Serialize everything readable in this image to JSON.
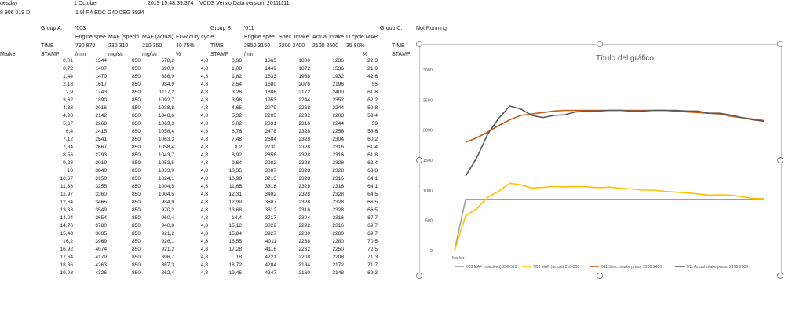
{
  "header": {
    "day_partial": "uesday",
    "date_part1": "1 October",
    "date_part2": "2019 15:48:39:374",
    "vcds": "VCDS Versio Data version: 20111111",
    "part_number": "8 906 019 D",
    "engine": "1.9l R4 EDC G40 0SG 3934"
  },
  "groups": {
    "a_label": "Group A:",
    "a_value": "'003",
    "b_label": "Group B:",
    "b_value": "'011",
    "c_label": "Group C:",
    "c_value": "Not Running"
  },
  "columns": {
    "marker": "Marker",
    "time1": "TIME",
    "stamp1": "STAMP",
    "engine_speed": "Engine spee",
    "engine_speed_range": "790 870",
    "engine_speed_unit": "/min",
    "maf_spec": "MAF (specifi",
    "maf_spec_range": "230 310",
    "maf_spec_unit": "mg/str",
    "maf_actual": "MAF (actual)",
    "maf_actual_range": "210 350",
    "maf_actual_unit": "mg/str",
    "egr": "EGR duty cycle",
    "egr_range": "40 75%",
    "egr_unit": "%",
    "time2": "TIME",
    "stamp2": "STAMP",
    "engine_speed2": "Engine spee",
    "engine_speed2_range": "2850 3150",
    "engine_speed2_unit": "/min",
    "spec_intake": "Spec. intake",
    "spec_intake_range": "2200 2400",
    "actual_intake": "Actual intake",
    "actual_intake_range": "2100 2600",
    "dcycle": "D.cycle MAP",
    "dcycle_range": "35 80%",
    "dcycle_unit": "%",
    "time3": "TIME",
    "stamp3": "STAMP"
  },
  "rows": [
    [
      "0,01",
      "1344",
      "850",
      "578,2",
      "4,8",
      "0,36",
      "1365",
      "1800",
      "1236",
      "22,3"
    ],
    [
      "0,72",
      "1407",
      "850",
      "690,9",
      "4,8",
      "1,08",
      "1449",
      "1872",
      "1536",
      "21,9"
    ],
    [
      "1,44",
      "1470",
      "850",
      "886,9",
      "4,8",
      "1,82",
      "1533",
      "1968",
      "1932",
      "42,6"
    ],
    [
      "2,18",
      "1617",
      "850",
      "984,9",
      "4,8",
      "2,54",
      "1680",
      "2076",
      "2196",
      "55"
    ],
    [
      "2,9",
      "1743",
      "850",
      "1117,2",
      "4,8",
      "3,26",
      "1806",
      "2172",
      "2400",
      "61,8"
    ],
    [
      "3,62",
      "1890",
      "850",
      "1092,7",
      "4,8",
      "3,98",
      "1953",
      "2244",
      "2352",
      "62,2"
    ],
    [
      "4,33",
      "2016",
      "850",
      "1038,8",
      "4,8",
      "4,65",
      "2079",
      "2268",
      "2244",
      "59,8"
    ],
    [
      "4,98",
      "2142",
      "850",
      "1048,6",
      "4,8",
      "5,32",
      "2205",
      "2292",
      "2208",
      "59,4"
    ],
    [
      "5,67",
      "2268",
      "850",
      "1063,3",
      "4,8",
      "6,02",
      "2331",
      "2316",
      "2244",
      "59"
    ],
    [
      "6,4",
      "2415",
      "850",
      "1058,4",
      "4,8",
      "6,76",
      "2478",
      "2328",
      "2256",
      "58,6"
    ],
    [
      "7,12",
      "2541",
      "850",
      "1063,3",
      "4,8",
      "7,48",
      "2604",
      "2328",
      "2304",
      "60,2"
    ],
    [
      "7,84",
      "2667",
      "850",
      "1058,4",
      "4,8",
      "8,2",
      "2730",
      "2328",
      "2316",
      "61,4"
    ],
    [
      "8,56",
      "2793",
      "850",
      "1043,7",
      "4,8",
      "8,92",
      "2856",
      "2328",
      "2316",
      "61,8"
    ],
    [
      "9,28",
      "2919",
      "850",
      "1053,5",
      "4,8",
      "9,64",
      "2982",
      "2328",
      "2328",
      "63,4"
    ],
    [
      "10",
      "3040",
      "850",
      "1033,9",
      "4,8",
      "10,35",
      "3087",
      "2328",
      "2328",
      "63,8"
    ],
    [
      "10,67",
      "3150",
      "850",
      "1024,1",
      "4,8",
      "10,99",
      "3213",
      "2328",
      "2316",
      "64,1"
    ],
    [
      "11,33",
      "3255",
      "850",
      "1004,5",
      "4,8",
      "11,65",
      "3318",
      "2328",
      "2316",
      "64,1"
    ],
    [
      "11,97",
      "3360",
      "850",
      "1004,5",
      "4,8",
      "12,31",
      "3402",
      "2328",
      "2328",
      "64,5"
    ],
    [
      "12,64",
      "3465",
      "850",
      "984,9",
      "4,8",
      "12,99",
      "3507",
      "2328",
      "2328",
      "66,5"
    ],
    [
      "13,33",
      "3549",
      "850",
      "970,2",
      "4,8",
      "13,68",
      "3612",
      "2316",
      "2328",
      "66,5"
    ],
    [
      "14,04",
      "3654",
      "850",
      "960,4",
      "4,8",
      "14,4",
      "3717",
      "2304",
      "2316",
      "67,7"
    ],
    [
      "14,76",
      "3780",
      "850",
      "940,8",
      "4,8",
      "15,12",
      "3822",
      "2292",
      "2316",
      "69,7"
    ],
    [
      "15,48",
      "3885",
      "850",
      "921,2",
      "4,8",
      "15,84",
      "3927",
      "2280",
      "2280",
      "69,7"
    ],
    [
      "16,2",
      "3969",
      "850",
      "926,1",
      "4,8",
      "16,55",
      "4011",
      "2268",
      "2280",
      "70,5"
    ],
    [
      "16,92",
      "4074",
      "850",
      "921,2",
      "4,8",
      "17,28",
      "4116",
      "2232",
      "2250",
      "72,5"
    ],
    [
      "17,64",
      "4179",
      "850",
      "896,7",
      "4,8",
      "18",
      "4221",
      "2208",
      "2208",
      "71,3"
    ],
    [
      "18,36",
      "4263",
      "850",
      "867,3",
      "4,8",
      "18,72",
      "4284",
      "2184",
      "2172",
      "71,7"
    ],
    [
      "19,08",
      "4326",
      "850",
      "862,4",
      "4,8",
      "19,46",
      "4347",
      "2160",
      "2148",
      "69,3"
    ]
  ],
  "chart_data": {
    "type": "line",
    "title": "Título del gráfico",
    "ylim": [
      0,
      3000
    ],
    "yticks": [
      "0",
      "500",
      "1000",
      "1500",
      "2000",
      "2500",
      "3000"
    ],
    "x_category_label": "Marker",
    "grid": false,
    "legend_position": "bottom",
    "series": [
      {
        "name": "'003 MAF (specified) 230-310",
        "color": "#9e9e9e",
        "values": [
          0,
          850,
          850,
          850,
          850,
          850,
          850,
          850,
          850,
          850,
          850,
          850,
          850,
          850,
          850,
          850,
          850,
          850,
          850,
          850,
          850,
          850,
          850,
          850,
          850,
          850,
          850,
          850,
          850
        ]
      },
      {
        "name": "'003 MAF (actual) 210-350",
        "color": "#ffc000",
        "values": [
          0,
          578.2,
          690.9,
          886.9,
          984.9,
          1117.2,
          1092.7,
          1038.8,
          1048.6,
          1063.3,
          1058.4,
          1063.3,
          1058.4,
          1043.7,
          1053.5,
          1033.9,
          1024.1,
          1004.5,
          1004.5,
          984.9,
          970.2,
          960.4,
          940.8,
          921.2,
          926.1,
          921.2,
          896.7,
          867.3,
          862.4
        ]
      },
      {
        "name": "'011 Spec. intake press. 2200-2400",
        "color": "#c55a11",
        "values": [
          null,
          1800,
          1872,
          1968,
          2076,
          2172,
          2244,
          2268,
          2292,
          2316,
          2328,
          2328,
          2328,
          2328,
          2328,
          2328,
          2328,
          2328,
          2328,
          2328,
          2316,
          2304,
          2292,
          2280,
          2268,
          2232,
          2208,
          2184,
          2160
        ]
      },
      {
        "name": "'011 Actual intake press. 2100-2600",
        "color": "#595959",
        "values": [
          null,
          1236,
          1536,
          1932,
          2196,
          2400,
          2352,
          2244,
          2208,
          2244,
          2256,
          2304,
          2316,
          2316,
          2328,
          2328,
          2316,
          2316,
          2328,
          2328,
          2328,
          2316,
          2316,
          2280,
          2280,
          2250,
          2208,
          2172,
          2148
        ]
      }
    ]
  }
}
